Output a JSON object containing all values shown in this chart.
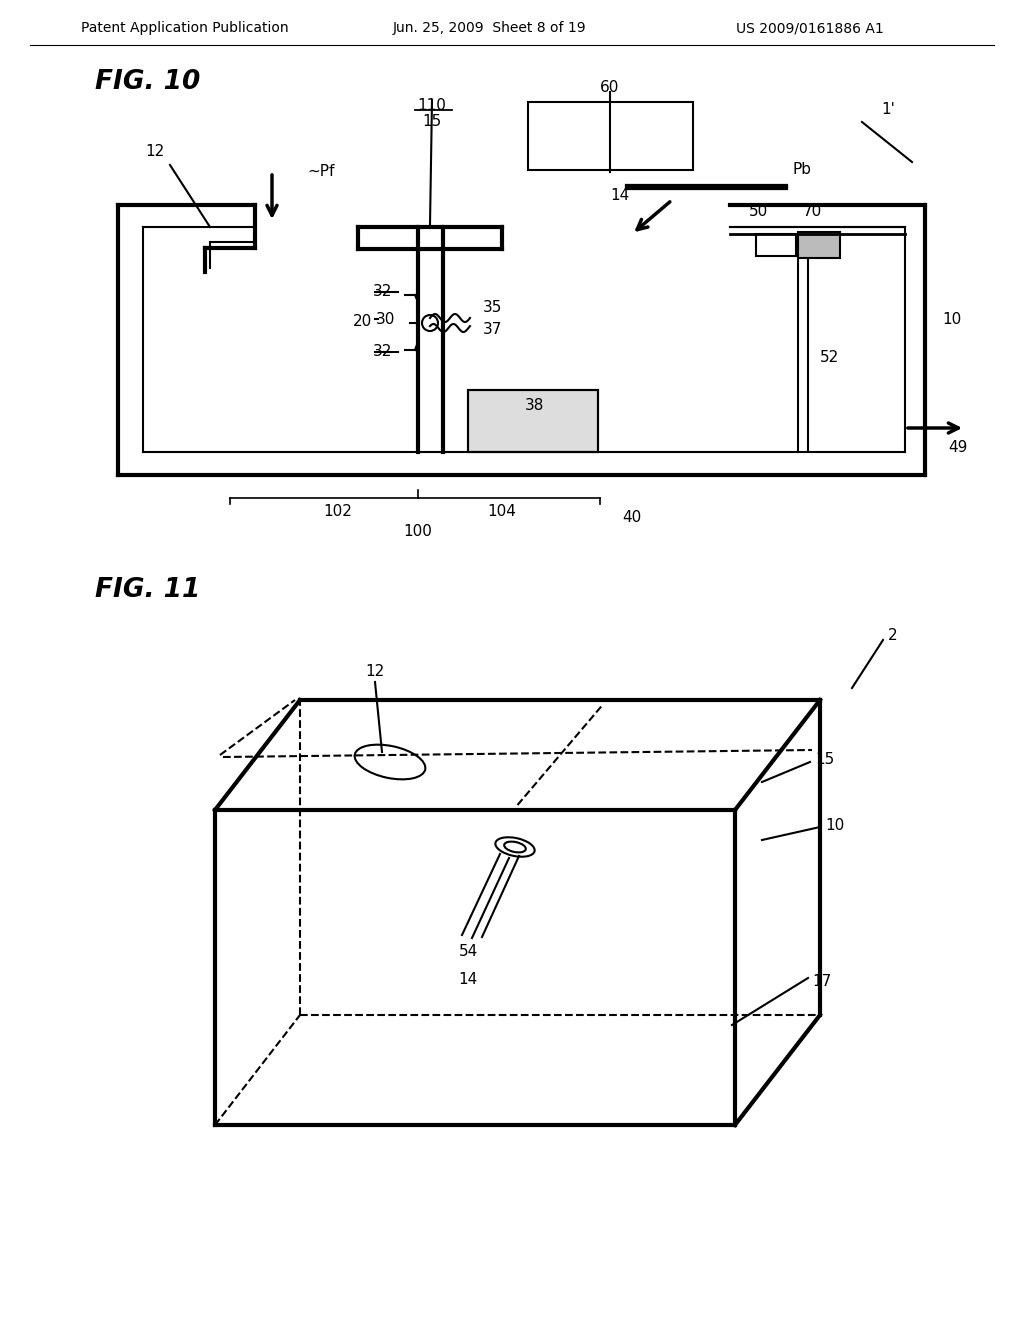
{
  "bg_color": "#ffffff",
  "header_left": "Patent Application Publication",
  "header_center": "Jun. 25, 2009  Sheet 8 of 19",
  "header_right": "US 2009/0161886 A1",
  "fig10_label": "FIG. 10",
  "fig11_label": "FIG. 11"
}
